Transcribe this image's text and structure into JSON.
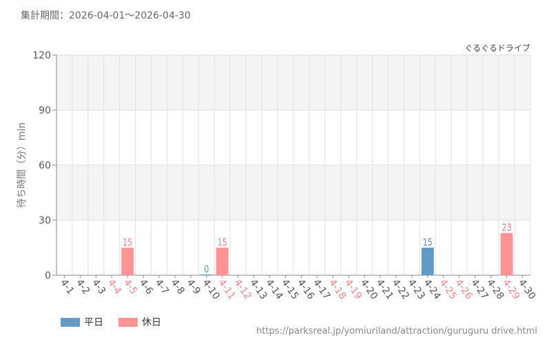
{
  "header": {
    "period_label": "集計期間：2026-04-01～2026-04-30"
  },
  "footer": {
    "source_url": "https://parksreal.jp/yomiuriland/attraction/guruguru drive.html"
  },
  "chart_data": {
    "type": "bar",
    "title": "ぐるぐるドライブ",
    "ylabel": "待ち時間（分）min",
    "xlabel": "",
    "ylim": [
      0,
      120
    ],
    "yticks": [
      0,
      30,
      60,
      90,
      120
    ],
    "grid": true,
    "legend_position": "bottom-left",
    "categories": [
      "4-1",
      "4-2",
      "4-3",
      "4-4",
      "4-5",
      "4-6",
      "4-7",
      "4-8",
      "4-9",
      "4-10",
      "4-11",
      "4-12",
      "4-13",
      "4-14",
      "4-15",
      "4-16",
      "4-17",
      "4-18",
      "4-19",
      "4-20",
      "4-21",
      "4-22",
      "4-23",
      "4-24",
      "4-25",
      "4-26",
      "4-27",
      "4-28",
      "4-29",
      "4-30"
    ],
    "holiday_flags": [
      false,
      false,
      false,
      true,
      true,
      false,
      false,
      false,
      false,
      false,
      true,
      true,
      false,
      false,
      false,
      false,
      false,
      true,
      true,
      false,
      false,
      false,
      false,
      false,
      true,
      true,
      false,
      false,
      true,
      false
    ],
    "series": [
      {
        "name": "平日",
        "color": "#6699c2",
        "values": [
          null,
          null,
          null,
          null,
          null,
          null,
          null,
          null,
          null,
          0,
          null,
          null,
          null,
          null,
          null,
          null,
          null,
          null,
          null,
          null,
          null,
          null,
          null,
          15,
          null,
          null,
          null,
          null,
          null,
          null
        ]
      },
      {
        "name": "休日",
        "color": "#ff9494",
        "values": [
          null,
          null,
          null,
          null,
          15,
          null,
          null,
          null,
          null,
          null,
          15,
          null,
          null,
          null,
          null,
          null,
          null,
          null,
          null,
          null,
          null,
          null,
          null,
          null,
          null,
          null,
          null,
          null,
          23,
          null
        ]
      }
    ],
    "colors": {
      "weekday": "#6699c2",
      "holiday": "#ff9494",
      "weekday_label": "#5b86ad",
      "holiday_label": "#ef7f7f",
      "tick_text": "#555555",
      "holiday_tick_text": "#f08a8a"
    }
  }
}
